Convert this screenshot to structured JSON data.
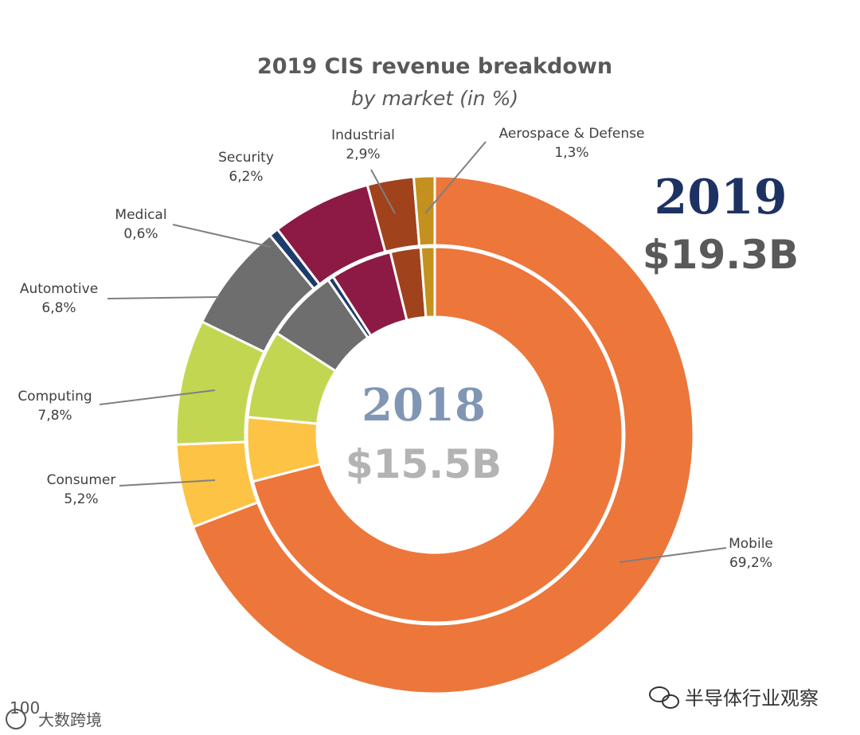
{
  "chart_data": {
    "type": "pie",
    "subtype": "nested-donut",
    "title": "2019 CIS revenue breakdown",
    "subtitle": "by market (in %)",
    "categories": [
      "Mobile",
      "Consumer",
      "Computing",
      "Automotive",
      "Medical",
      "Security",
      "Industrial",
      "Aerospace & Defense"
    ],
    "colors": [
      "#ed763b",
      "#fdc344",
      "#c3d652",
      "#6e6e6e",
      "#1d3b6b",
      "#8c1a44",
      "#a0421c",
      "#c4911e"
    ],
    "outer": {
      "name": "2019",
      "total_label": "$19.3B",
      "year_color": "#1d3263",
      "total_color": "#595959",
      "values": [
        69.2,
        5.2,
        7.8,
        6.8,
        0.6,
        6.2,
        2.9,
        1.3
      ],
      "value_labels": [
        "69,2%",
        "5,2%",
        "7,8%",
        "6,8%",
        "0,6%",
        "6,2%",
        "2,9%",
        "1,3%"
      ]
    },
    "inner": {
      "name": "2018",
      "total_label": "$15.5B",
      "year_color": "#8096b4",
      "total_color": "#b3b3b3",
      "values": [
        71.0,
        5.5,
        7.6,
        6.3,
        0.5,
        5.3,
        2.6,
        1.2
      ]
    }
  },
  "watermarks": {
    "left": "大数跨境",
    "left_logo": "100",
    "right": "半导体行业观察"
  }
}
